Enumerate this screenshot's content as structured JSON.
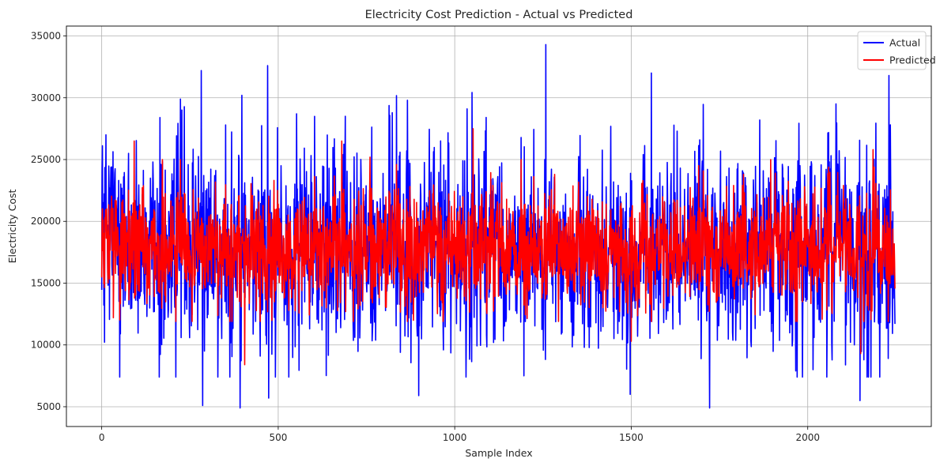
{
  "chart_data": {
    "type": "line",
    "title": "Electricity Cost Prediction - Actual vs Predicted",
    "xlabel": "Sample Index",
    "ylabel": "Electricity Cost",
    "xlim": [
      -100,
      2350
    ],
    "ylim": [
      3400,
      35800
    ],
    "x_ticks": [
      0,
      500,
      1000,
      1500,
      2000
    ],
    "y_ticks": [
      5000,
      10000,
      15000,
      20000,
      25000,
      30000,
      35000
    ],
    "grid": true,
    "legend_position": "top-right",
    "n_samples": 2248,
    "series": [
      {
        "name": "Actual",
        "color": "#0000ff",
        "summary": {
          "mean": 17800,
          "std": 3900,
          "min": 4900,
          "max": 34300
        },
        "peaks": [
          [
            12,
            27000
          ],
          [
            62,
            23600
          ],
          [
            165,
            28400
          ],
          [
            282,
            32200
          ],
          [
            286,
            5100
          ],
          [
            392,
            4900
          ],
          [
            397,
            30200
          ],
          [
            470,
            32600
          ],
          [
            473,
            5700
          ],
          [
            552,
            28700
          ],
          [
            690,
            28500
          ],
          [
            866,
            29800
          ],
          [
            898,
            5900
          ],
          [
            1035,
            29100
          ],
          [
            1258,
            34300
          ],
          [
            1497,
            6000
          ],
          [
            1557,
            32000
          ],
          [
            1722,
            4900
          ],
          [
            1864,
            28200
          ],
          [
            2015,
            8000
          ],
          [
            2080,
            29500
          ],
          [
            2148,
            5500
          ],
          [
            2230,
            31800
          ],
          [
            2232,
            11800
          ]
        ]
      },
      {
        "name": "Predicted",
        "color": "#ff0000",
        "summary": {
          "mean": 17800,
          "std": 2300,
          "min": 8400,
          "max": 27500
        },
        "peaks": [
          [
            92,
            26500
          ],
          [
            405,
            8400
          ],
          [
            680,
            26500
          ],
          [
            760,
            25200
          ],
          [
            1052,
            27500
          ],
          [
            1500,
            10300
          ],
          [
            1895,
            25000
          ],
          [
            2150,
            9300
          ],
          [
            2185,
            25800
          ]
        ]
      }
    ]
  }
}
